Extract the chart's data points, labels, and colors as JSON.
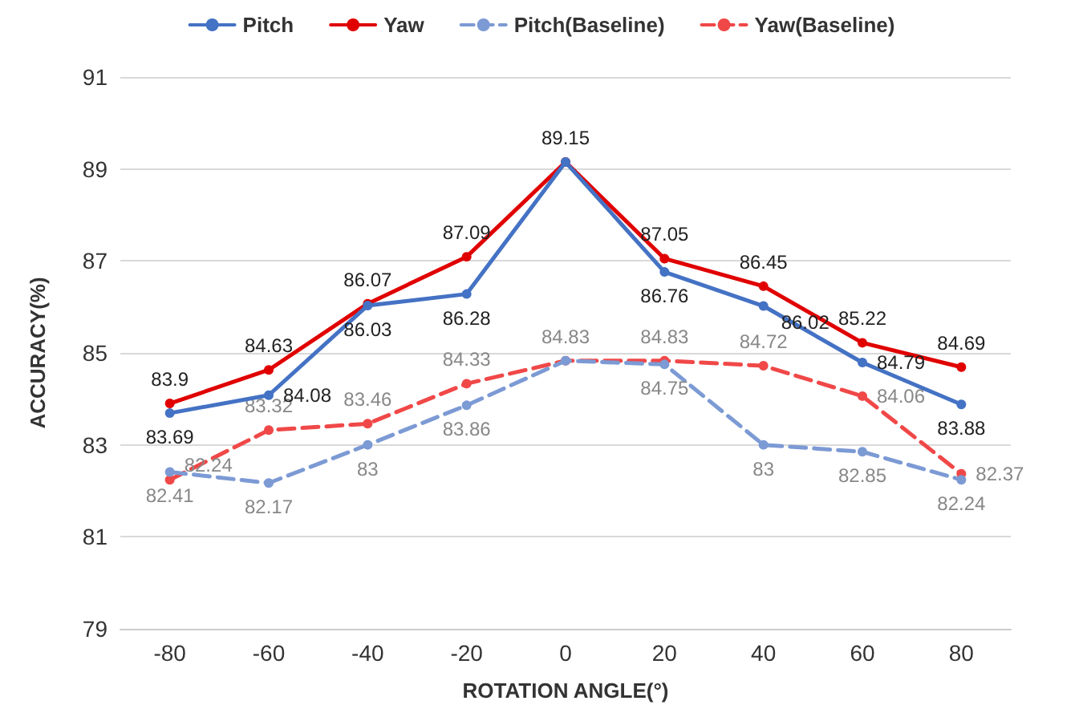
{
  "chart_data": {
    "type": "line",
    "xlabel": "ROTATION ANGLE(°)",
    "ylabel": "ACCURACY(%)",
    "categories": [
      "-80",
      "-60",
      "-40",
      "-20",
      "0",
      "20",
      "40",
      "60",
      "80"
    ],
    "series": [
      {
        "name": "Pitch",
        "color": "#4472c4",
        "line_style": "solid",
        "values": [
          83.69,
          84.08,
          86.03,
          86.28,
          89.15,
          86.76,
          86.02,
          84.79,
          83.88
        ],
        "value_labels": [
          "83.69",
          "84.08",
          "86.03",
          "86.28",
          null,
          "86.76",
          "86.02",
          "84.79",
          "83.88"
        ]
      },
      {
        "name": "Yaw",
        "color": "#e00000",
        "line_style": "solid",
        "values": [
          83.9,
          84.63,
          86.07,
          87.09,
          89.15,
          87.05,
          86.45,
          85.22,
          84.69
        ],
        "value_labels": [
          "83.9",
          "84.63",
          "86.07",
          "87.09",
          "89.15",
          "87.05",
          "86.45",
          "85.22",
          "84.69"
        ]
      },
      {
        "name": "Pitch(Baseline)",
        "color": "#7c9ad4",
        "line_style": "dashed",
        "values": [
          82.41,
          82.17,
          83,
          83.86,
          84.83,
          84.75,
          83,
          82.85,
          82.24
        ],
        "value_labels": [
          "82.41",
          "82.17",
          "83",
          "83.86",
          null,
          "84.75",
          "83",
          "82.85",
          "82.24"
        ]
      },
      {
        "name": "Yaw(Baseline)",
        "color": "#f04848",
        "line_style": "dashed",
        "values": [
          82.24,
          83.32,
          83.46,
          84.33,
          84.83,
          84.83,
          84.72,
          84.06,
          82.37
        ],
        "value_labels": [
          "82.24",
          "83.32",
          "83.46",
          "84.33",
          "84.83",
          "84.83",
          "84.72",
          "84.06",
          "82.37"
        ]
      }
    ],
    "ylim": [
      79,
      91
    ],
    "yticks": [
      79,
      81,
      83,
      85,
      87,
      89,
      91
    ],
    "grid": "y",
    "legend": "top",
    "marker": "circle"
  }
}
